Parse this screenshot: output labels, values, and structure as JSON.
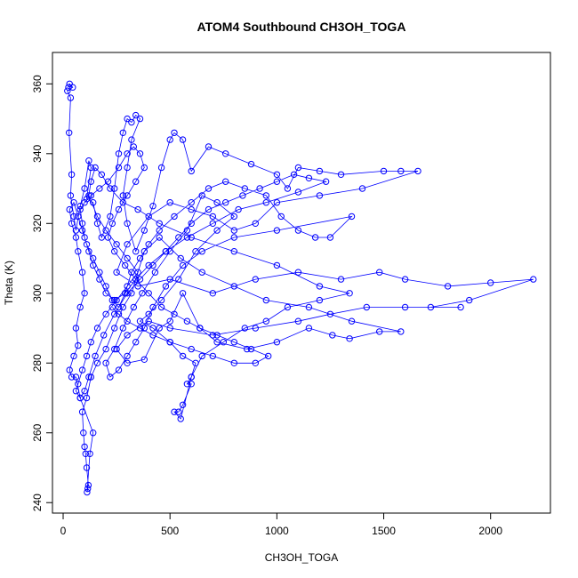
{
  "chart_data": {
    "type": "scatter",
    "title": "ATOM4 Southbound CH3OH_TOGA",
    "xlabel": "CH3OH_TOGA",
    "ylabel": "Theta (K)",
    "xlim": [
      -50,
      2280
    ],
    "ylim": [
      237,
      369
    ],
    "x_ticks": [
      0,
      500,
      1000,
      1500,
      2000
    ],
    "y_ticks": [
      240,
      260,
      280,
      300,
      320,
      340,
      360
    ],
    "x_tick_labels": [
      "0",
      "500",
      "1000",
      "1500",
      "2000"
    ],
    "y_tick_labels": [
      "240",
      "260",
      "280",
      "300",
      "320",
      "340",
      "360"
    ],
    "grid": false,
    "legend": "none",
    "marker": "open-circle",
    "connected": true,
    "color": "#0000ff",
    "series": [
      {
        "points": [
          [
            25,
            359
          ],
          [
            30,
            360
          ],
          [
            45,
            359
          ],
          [
            20,
            358
          ],
          [
            35,
            356
          ],
          [
            28,
            346
          ],
          [
            40,
            334
          ],
          [
            35,
            328
          ],
          [
            50,
            322
          ],
          [
            60,
            318
          ],
          [
            80,
            325
          ],
          [
            100,
            330
          ],
          [
            120,
            338
          ],
          [
            130,
            336
          ],
          [
            110,
            327
          ],
          [
            140,
            326
          ],
          [
            160,
            320
          ],
          [
            180,
            316
          ],
          [
            220,
            322
          ],
          [
            240,
            330
          ],
          [
            260,
            340
          ],
          [
            280,
            346
          ],
          [
            300,
            350
          ],
          [
            320,
            349
          ],
          [
            340,
            351
          ],
          [
            360,
            350
          ],
          [
            320,
            344
          ],
          [
            300,
            336
          ],
          [
            280,
            328
          ],
          [
            300,
            320
          ],
          [
            340,
            312
          ],
          [
            380,
            318
          ],
          [
            420,
            325
          ],
          [
            460,
            336
          ],
          [
            500,
            344
          ],
          [
            520,
            346
          ],
          [
            560,
            344
          ],
          [
            600,
            335
          ],
          [
            680,
            342
          ],
          [
            760,
            340
          ],
          [
            880,
            337
          ],
          [
            1000,
            334
          ],
          [
            1050,
            330
          ],
          [
            1100,
            336
          ],
          [
            1200,
            335
          ],
          [
            1300,
            334
          ],
          [
            1500,
            335
          ],
          [
            1580,
            335
          ],
          [
            1660,
            335
          ],
          [
            1400,
            330
          ],
          [
            1200,
            328
          ],
          [
            1000,
            326
          ],
          [
            900,
            320
          ],
          [
            800,
            318
          ],
          [
            700,
            322
          ],
          [
            600,
            324
          ],
          [
            500,
            326
          ],
          [
            400,
            322
          ],
          [
            300,
            314
          ],
          [
            250,
            306
          ],
          [
            350,
            302
          ],
          [
            500,
            304
          ],
          [
            700,
            300
          ],
          [
            900,
            304
          ],
          [
            1100,
            306
          ],
          [
            1300,
            304
          ],
          [
            1480,
            306
          ],
          [
            1600,
            304
          ],
          [
            1800,
            302
          ],
          [
            2000,
            303
          ],
          [
            2200,
            304
          ],
          [
            1900,
            298
          ],
          [
            1720,
            296
          ],
          [
            1860,
            296
          ],
          [
            1600,
            296
          ],
          [
            1420,
            296
          ],
          [
            1250,
            294
          ],
          [
            1100,
            292
          ],
          [
            900,
            290
          ],
          [
            700,
            288
          ],
          [
            500,
            290
          ],
          [
            400,
            292
          ],
          [
            300,
            288
          ],
          [
            250,
            284
          ],
          [
            300,
            280
          ],
          [
            380,
            281
          ],
          [
            450,
            290
          ],
          [
            500,
            292
          ],
          [
            560,
            300
          ],
          [
            640,
            290
          ],
          [
            720,
            286
          ],
          [
            860,
            284
          ],
          [
            1000,
            286
          ],
          [
            1150,
            290
          ],
          [
            1260,
            288
          ],
          [
            1340,
            287
          ],
          [
            1480,
            289
          ],
          [
            1580,
            289
          ],
          [
            1350,
            292
          ],
          [
            1150,
            296
          ],
          [
            950,
            298
          ],
          [
            800,
            302
          ],
          [
            650,
            306
          ],
          [
            550,
            310
          ],
          [
            450,
            316
          ],
          [
            380,
            312
          ],
          [
            320,
            300
          ],
          [
            280,
            296
          ],
          [
            240,
            290
          ],
          [
            200,
            284
          ],
          [
            160,
            280
          ],
          [
            130,
            276
          ],
          [
            110,
            270
          ],
          [
            90,
            266
          ],
          [
            95,
            260
          ],
          [
            100,
            256
          ],
          [
            105,
            254
          ],
          [
            110,
            250
          ],
          [
            118,
            245
          ],
          [
            115,
            244
          ],
          [
            112,
            243
          ],
          [
            125,
            254
          ],
          [
            140,
            260
          ],
          [
            80,
            270
          ],
          [
            60,
            276
          ],
          [
            40,
            276
          ],
          [
            30,
            278
          ],
          [
            50,
            282
          ],
          [
            70,
            285
          ],
          [
            60,
            290
          ],
          [
            80,
            296
          ],
          [
            100,
            300
          ],
          [
            90,
            306
          ],
          [
            70,
            312
          ],
          [
            60,
            316
          ],
          [
            40,
            320
          ],
          [
            30,
            324
          ],
          [
            50,
            326
          ],
          [
            70,
            322
          ],
          [
            90,
            318
          ],
          [
            110,
            314
          ],
          [
            140,
            310
          ],
          [
            170,
            306
          ],
          [
            200,
            302
          ],
          [
            230,
            298
          ],
          [
            260,
            296
          ],
          [
            290,
            300
          ],
          [
            320,
            306
          ],
          [
            360,
            310
          ],
          [
            400,
            314
          ],
          [
            450,
            318
          ],
          [
            520,
            322
          ],
          [
            600,
            326
          ],
          [
            680,
            330
          ],
          [
            760,
            332
          ],
          [
            850,
            330
          ],
          [
            950,
            328
          ],
          [
            1020,
            322
          ],
          [
            1100,
            318
          ],
          [
            1180,
            316
          ],
          [
            1250,
            316
          ],
          [
            1350,
            322
          ],
          [
            1000,
            318
          ],
          [
            800,
            316
          ],
          [
            650,
            312
          ],
          [
            560,
            308
          ],
          [
            480,
            302
          ],
          [
            420,
            296
          ],
          [
            380,
            290
          ],
          [
            340,
            286
          ],
          [
            300,
            282
          ],
          [
            260,
            278
          ],
          [
            220,
            276
          ],
          [
            200,
            280
          ],
          [
            240,
            284
          ],
          [
            280,
            290
          ],
          [
            330,
            296
          ],
          [
            370,
            300
          ],
          [
            430,
            306
          ],
          [
            500,
            312
          ],
          [
            580,
            318
          ],
          [
            650,
            328
          ],
          [
            720,
            326
          ],
          [
            800,
            322
          ],
          [
            720,
            318
          ],
          [
            620,
            312
          ],
          [
            540,
            304
          ],
          [
            460,
            298
          ],
          [
            400,
            294
          ],
          [
            360,
            292
          ],
          [
            420,
            290
          ],
          [
            500,
            286
          ],
          [
            560,
            282
          ],
          [
            620,
            280
          ],
          [
            600,
            276
          ],
          [
            580,
            274
          ],
          [
            600,
            274
          ],
          [
            560,
            268
          ],
          [
            540,
            266
          ],
          [
            520,
            266
          ],
          [
            550,
            264
          ],
          [
            600,
            276
          ],
          [
            650,
            282
          ],
          [
            750,
            286
          ],
          [
            850,
            290
          ],
          [
            950,
            292
          ],
          [
            1050,
            296
          ],
          [
            1200,
            298
          ],
          [
            1340,
            300
          ],
          [
            1200,
            302
          ],
          [
            1000,
            308
          ],
          [
            800,
            312
          ],
          [
            600,
            316
          ],
          [
            450,
            320
          ],
          [
            350,
            324
          ],
          [
            280,
            326
          ],
          [
            220,
            330
          ],
          [
            180,
            334
          ],
          [
            150,
            336
          ],
          [
            130,
            332
          ],
          [
            120,
            328
          ],
          [
            160,
            322
          ],
          [
            200,
            318
          ],
          [
            250,
            314
          ],
          [
            300,
            310
          ],
          [
            350,
            306
          ],
          [
            300,
            302
          ],
          [
            250,
            298
          ],
          [
            200,
            294
          ],
          [
            160,
            290
          ],
          [
            130,
            286
          ],
          [
            110,
            282
          ],
          [
            90,
            278
          ],
          [
            70,
            274
          ],
          [
            60,
            272
          ],
          [
            80,
            270
          ],
          [
            100,
            272
          ],
          [
            120,
            276
          ],
          [
            150,
            282
          ],
          [
            190,
            288
          ],
          [
            240,
            294
          ],
          [
            300,
            300
          ],
          [
            360,
            304
          ],
          [
            420,
            308
          ],
          [
            480,
            312
          ],
          [
            540,
            316
          ],
          [
            600,
            320
          ],
          [
            680,
            324
          ],
          [
            760,
            326
          ],
          [
            840,
            328
          ],
          [
            920,
            330
          ],
          [
            1000,
            332
          ],
          [
            1080,
            334
          ],
          [
            1150,
            333
          ],
          [
            1230,
            332
          ],
          [
            1100,
            329
          ],
          [
            950,
            326
          ],
          [
            820,
            324
          ],
          [
            700,
            320
          ],
          [
            580,
            316
          ],
          [
            480,
            312
          ],
          [
            400,
            308
          ],
          [
            340,
            304
          ],
          [
            290,
            300
          ],
          [
            240,
            298
          ],
          [
            200,
            300
          ],
          [
            170,
            304
          ],
          [
            140,
            308
          ],
          [
            120,
            312
          ],
          [
            100,
            316
          ],
          [
            90,
            320
          ],
          [
            80,
            324
          ],
          [
            100,
            326
          ],
          [
            130,
            328
          ],
          [
            170,
            330
          ],
          [
            210,
            332
          ],
          [
            260,
            336
          ],
          [
            300,
            340
          ],
          [
            330,
            342
          ],
          [
            360,
            340
          ],
          [
            380,
            336
          ],
          [
            340,
            332
          ],
          [
            300,
            328
          ],
          [
            260,
            324
          ],
          [
            230,
            320
          ],
          [
            210,
            316
          ],
          [
            240,
            312
          ],
          [
            290,
            308
          ],
          [
            340,
            304
          ],
          [
            400,
            300
          ],
          [
            460,
            296
          ],
          [
            520,
            294
          ],
          [
            580,
            292
          ],
          [
            640,
            290
          ],
          [
            720,
            288
          ],
          [
            800,
            286
          ],
          [
            880,
            284
          ],
          [
            960,
            282
          ],
          [
            900,
            280
          ],
          [
            800,
            280
          ],
          [
            700,
            282
          ],
          [
            600,
            284
          ],
          [
            500,
            286
          ],
          [
            420,
            288
          ],
          [
            360,
            290
          ],
          [
            300,
            292
          ],
          [
            260,
            294
          ],
          [
            230,
            296
          ]
        ]
      }
    ]
  }
}
